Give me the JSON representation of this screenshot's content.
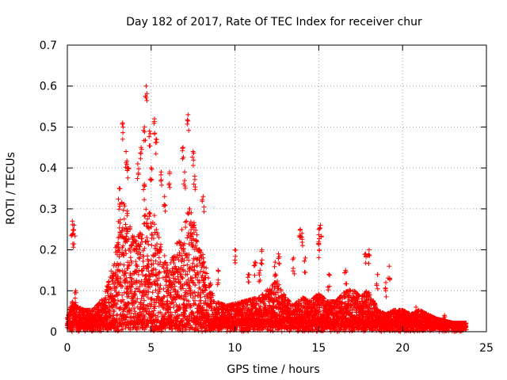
{
  "chart_data": {
    "type": "scatter",
    "title": "Day 182 of 2017, Rate Of TEC Index for receiver chur",
    "xlabel": "GPS time / hours",
    "ylabel": "ROTI / TECUs",
    "xlim": [
      0,
      25
    ],
    "ylim": [
      0,
      0.7
    ],
    "x_ticks": [
      "0",
      "5",
      "10",
      "15",
      "20",
      "25"
    ],
    "y_ticks": [
      "0",
      "0.1",
      "0.2",
      "0.3",
      "0.4",
      "0.5",
      "0.6",
      "0.7"
    ],
    "x_tick_values": [
      0,
      5,
      10,
      15,
      20,
      25
    ],
    "y_tick_values": [
      0,
      0.1,
      0.2,
      0.3,
      0.4,
      0.5,
      0.6,
      0.7
    ],
    "grid": true,
    "marker": "+",
    "series": [
      {
        "name": "ROTI",
        "color": "#ff0000",
        "envelope": [
          [
            0.0,
            0.03
          ],
          [
            0.3,
            0.07
          ],
          [
            0.5,
            0.06
          ],
          [
            1.0,
            0.05
          ],
          [
            1.5,
            0.05
          ],
          [
            2.0,
            0.07
          ],
          [
            2.5,
            0.12
          ],
          [
            2.8,
            0.2
          ],
          [
            3.0,
            0.28
          ],
          [
            3.2,
            0.33
          ],
          [
            3.5,
            0.3
          ],
          [
            4.0,
            0.22
          ],
          [
            4.5,
            0.26
          ],
          [
            4.8,
            0.3
          ],
          [
            5.0,
            0.33
          ],
          [
            5.5,
            0.22
          ],
          [
            6.0,
            0.15
          ],
          [
            6.5,
            0.2
          ],
          [
            7.0,
            0.26
          ],
          [
            7.3,
            0.32
          ],
          [
            7.8,
            0.22
          ],
          [
            8.3,
            0.15
          ],
          [
            8.8,
            0.07
          ],
          [
            9.5,
            0.06
          ],
          [
            10.5,
            0.07
          ],
          [
            11.5,
            0.08
          ],
          [
            12.0,
            0.1
          ],
          [
            12.5,
            0.12
          ],
          [
            13.0,
            0.08
          ],
          [
            13.5,
            0.06
          ],
          [
            14.0,
            0.08
          ],
          [
            14.5,
            0.07
          ],
          [
            15.0,
            0.09
          ],
          [
            15.5,
            0.07
          ],
          [
            16.0,
            0.07
          ],
          [
            16.5,
            0.09
          ],
          [
            17.0,
            0.1
          ],
          [
            17.5,
            0.08
          ],
          [
            18.0,
            0.1
          ],
          [
            18.5,
            0.05
          ],
          [
            19.0,
            0.04
          ],
          [
            19.5,
            0.05
          ],
          [
            20.0,
            0.05
          ],
          [
            20.5,
            0.04
          ],
          [
            21.0,
            0.05
          ],
          [
            22.0,
            0.03
          ],
          [
            23.0,
            0.02
          ],
          [
            23.8,
            0.02
          ]
        ],
        "outliers": [
          [
            4.7,
            0.6
          ],
          [
            5.2,
            0.52
          ],
          [
            3.3,
            0.51
          ],
          [
            4.6,
            0.5
          ],
          [
            4.9,
            0.49
          ],
          [
            5.3,
            0.47
          ],
          [
            7.2,
            0.53
          ],
          [
            6.9,
            0.45
          ],
          [
            4.4,
            0.45
          ],
          [
            3.5,
            0.44
          ],
          [
            7.5,
            0.44
          ],
          [
            3.6,
            0.4
          ],
          [
            4.2,
            0.41
          ],
          [
            5.0,
            0.4
          ],
          [
            5.6,
            0.39
          ],
          [
            6.1,
            0.39
          ],
          [
            7.0,
            0.39
          ],
          [
            7.6,
            0.38
          ],
          [
            3.1,
            0.35
          ],
          [
            4.6,
            0.36
          ],
          [
            5.8,
            0.33
          ],
          [
            8.1,
            0.33
          ],
          [
            0.3,
            0.27
          ],
          [
            0.4,
            0.26
          ],
          [
            0.35,
            0.24
          ],
          [
            13.9,
            0.25
          ],
          [
            14.0,
            0.24
          ],
          [
            15.1,
            0.26
          ],
          [
            15.0,
            0.25
          ],
          [
            15.0,
            0.22
          ],
          [
            10.0,
            0.2
          ],
          [
            11.6,
            0.2
          ],
          [
            11.2,
            0.17
          ],
          [
            12.6,
            0.19
          ],
          [
            12.4,
            0.17
          ],
          [
            13.5,
            0.18
          ],
          [
            14.2,
            0.18
          ],
          [
            18.0,
            0.2
          ],
          [
            17.8,
            0.19
          ],
          [
            19.2,
            0.16
          ],
          [
            19.0,
            0.12
          ],
          [
            18.5,
            0.14
          ],
          [
            16.6,
            0.15
          ],
          [
            15.6,
            0.14
          ],
          [
            10.8,
            0.14
          ],
          [
            11.5,
            0.15
          ],
          [
            9.0,
            0.15
          ],
          [
            0.5,
            0.1
          ],
          [
            20.8,
            0.06
          ],
          [
            22.5,
            0.04
          ]
        ],
        "baseline_range": [
          0.0,
          0.02
        ]
      }
    ]
  }
}
